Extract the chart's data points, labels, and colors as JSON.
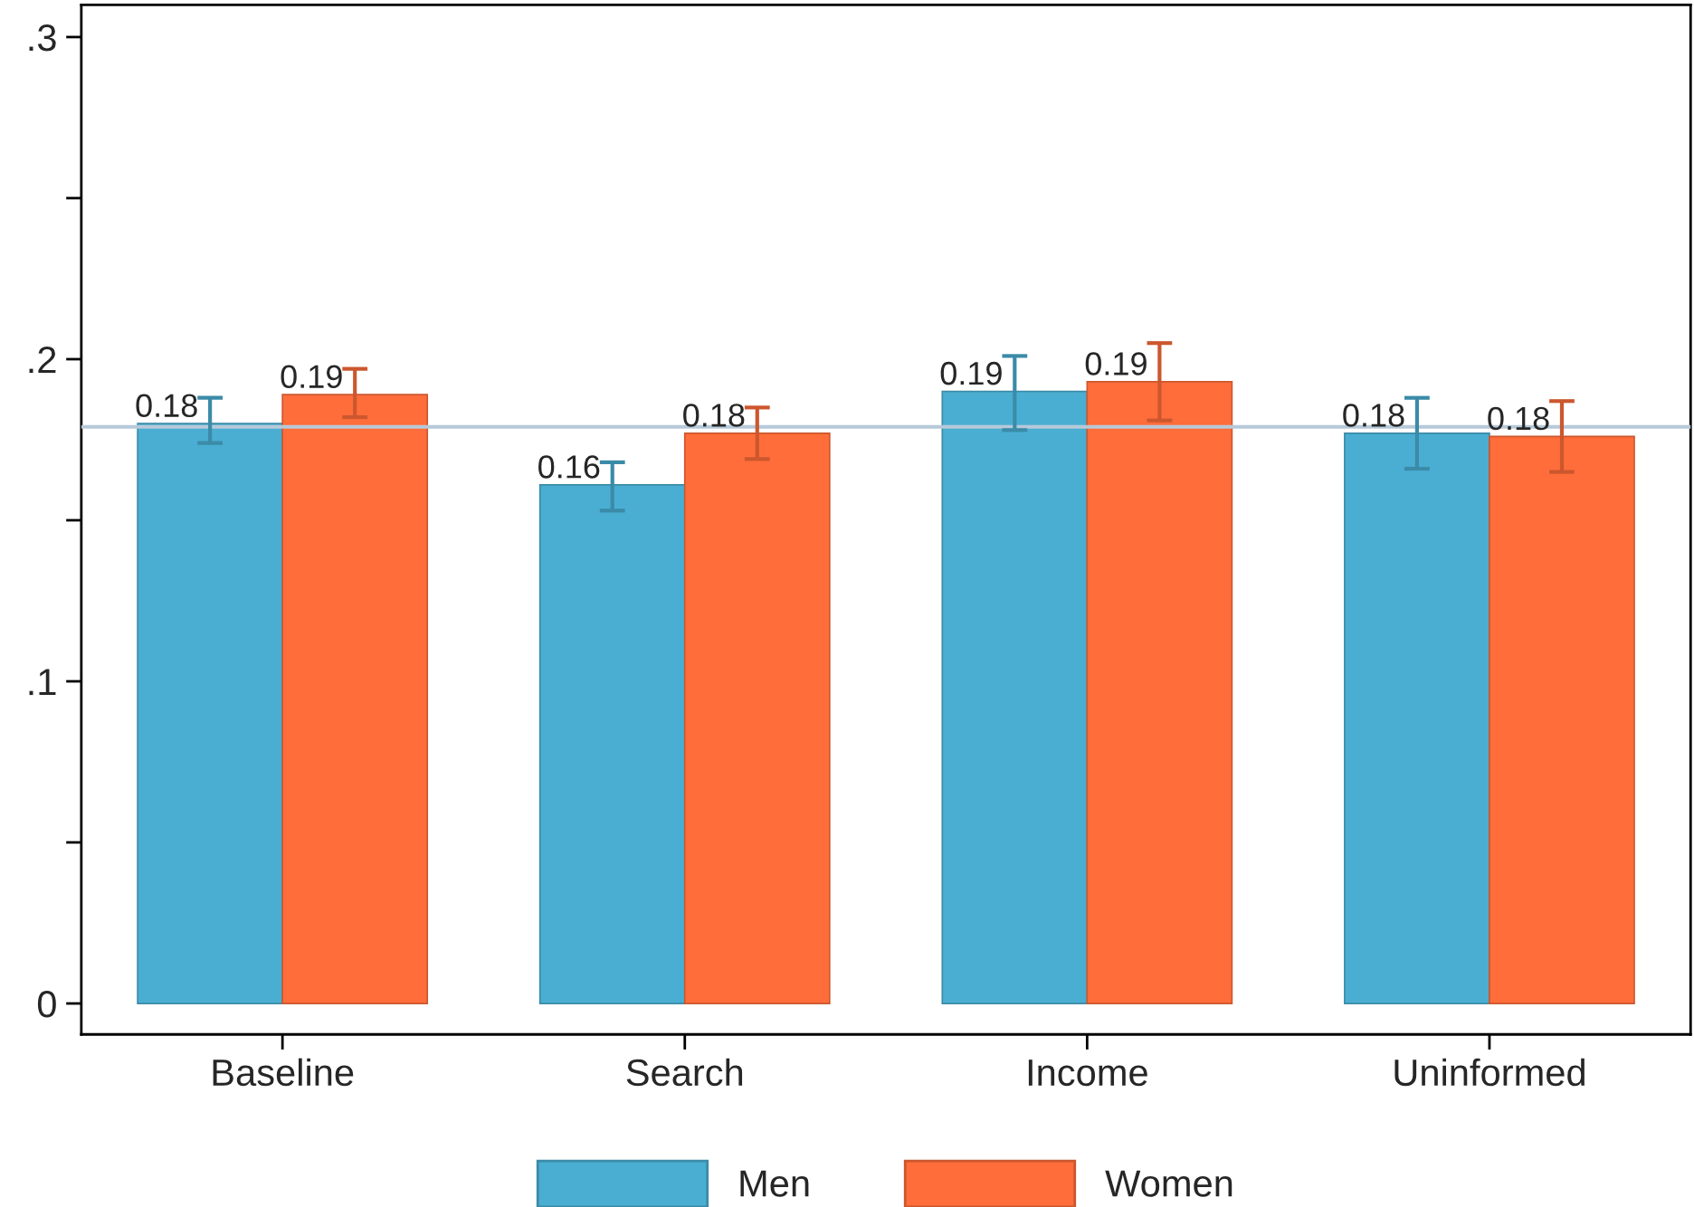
{
  "chart_data": {
    "type": "bar",
    "categories": [
      "Baseline",
      "Search",
      "Income",
      "Uninformed"
    ],
    "series": [
      {
        "name": "Men",
        "color": "#4aaed2",
        "values": [
          0.18,
          0.161,
          0.19,
          0.177
        ],
        "errors": [
          [
            0.174,
            0.188
          ],
          [
            0.153,
            0.168
          ],
          [
            0.178,
            0.201
          ],
          [
            0.166,
            0.188
          ]
        ],
        "value_labels": [
          "0.18",
          "0.16",
          "0.19",
          "0.18"
        ]
      },
      {
        "name": "Women",
        "color": "#ff6d3a",
        "values": [
          0.189,
          0.177,
          0.193,
          0.176
        ],
        "errors": [
          [
            0.182,
            0.197
          ],
          [
            0.169,
            0.185
          ],
          [
            0.181,
            0.205
          ],
          [
            0.165,
            0.187
          ]
        ],
        "value_labels": [
          "0.19",
          "0.18",
          "0.19",
          "0.18"
        ]
      }
    ],
    "ylim": [
      -0.0096,
      0.31
    ],
    "yticks": [
      {
        "value": 0,
        "label": "0"
      },
      {
        "value": 0.05,
        "label": null
      },
      {
        "value": 0.1,
        "label": ".1"
      },
      {
        "value": 0.15,
        "label": null
      },
      {
        "value": 0.2,
        "label": ".2"
      },
      {
        "value": 0.25,
        "label": null
      },
      {
        "value": 0.3,
        "label": ".3"
      }
    ],
    "ref_lines": [
      {
        "axis": "y",
        "value": 0.179,
        "color": "#b7c9d9"
      }
    ],
    "grid": false,
    "legend": "bottom"
  }
}
